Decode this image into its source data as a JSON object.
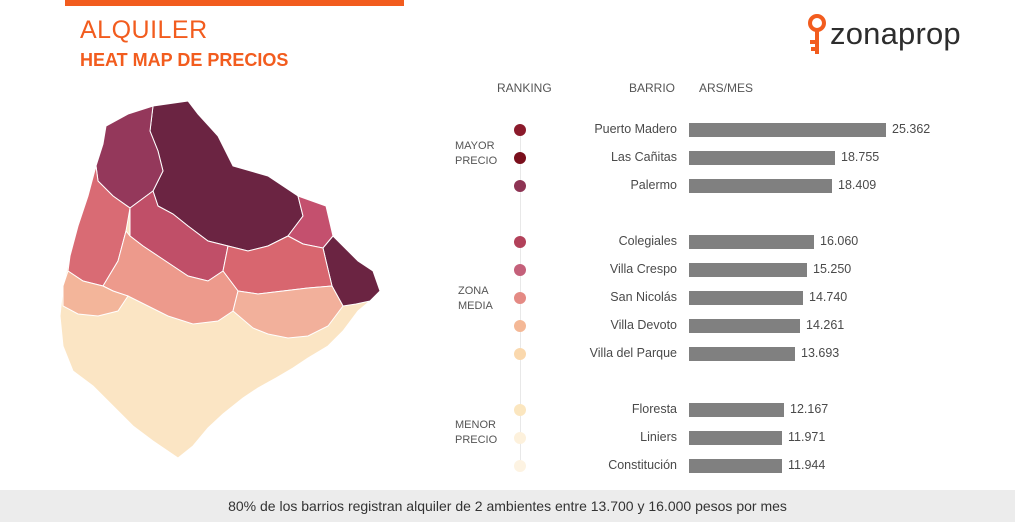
{
  "header": {
    "title": "ALQUILER",
    "subtitle": "HEAT MAP DE PRECIOS",
    "brand": "zonaprop"
  },
  "columns": {
    "ranking": "RANKING",
    "barrio": "BARRIO",
    "ars": "ARS/MES"
  },
  "groups": [
    {
      "line1": "MAYOR",
      "line2": "PRECIO"
    },
    {
      "line1": "ZONA",
      "line2": "MEDIA"
    },
    {
      "line1": "MENOR",
      "line2": "PRECIO"
    }
  ],
  "colors": {
    "accent": "#f25c1e",
    "bar": "#808080",
    "logo_icon": "#f25c1e"
  },
  "chart_data": {
    "type": "bar",
    "orientation": "horizontal",
    "categories": [
      "Puerto Madero",
      "Las Cañitas",
      "Palermo",
      "Colegiales",
      "Villa Crespo",
      "San Nicolás",
      "Villa Devoto",
      "Villa del Parque",
      "Floresta",
      "Liniers",
      "Constitución"
    ],
    "values": [
      25362,
      18755,
      18409,
      16060,
      15250,
      14740,
      14261,
      13693,
      12167,
      11971,
      11944
    ],
    "value_labels": [
      "25.362",
      "18.755",
      "18.409",
      "16.060",
      "15.250",
      "14.740",
      "14.261",
      "13.693",
      "12.167",
      "11.971",
      "11.944"
    ],
    "groups": [
      "MAYOR PRECIO",
      "MAYOR PRECIO",
      "MAYOR PRECIO",
      "ZONA MEDIA",
      "ZONA MEDIA",
      "ZONA MEDIA",
      "ZONA MEDIA",
      "ZONA MEDIA",
      "MENOR PRECIO",
      "MENOR PRECIO",
      "MENOR PRECIO"
    ],
    "ranking_colors": [
      "#8b1a2b",
      "#7a0f1c",
      "#8e3454",
      "#b2415a",
      "#c4607a",
      "#e48a84",
      "#f4b896",
      "#fad8ad",
      "#fbe6bf",
      "#fdf1dc",
      "#fdf3e2"
    ],
    "xlim": [
      0,
      25362
    ],
    "grid": false,
    "legend": "none"
  },
  "footer": {
    "text": "80% de los barrios registran alquiler de 2 ambientes entre 13.700 y 16.000 pesos por mes"
  }
}
